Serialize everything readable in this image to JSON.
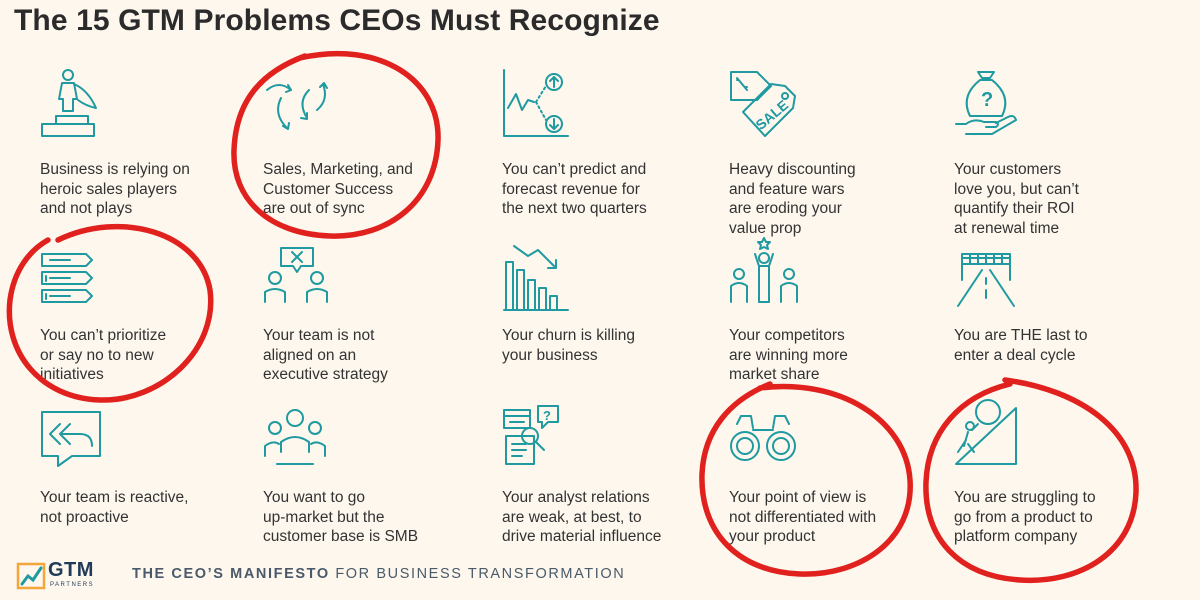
{
  "title": "The 15 GTM Problems CEOs Must Recognize",
  "accent_color": "#1e9aa0",
  "highlight_color": "#e0211d",
  "problems": [
    {
      "icon": "hero-podium-icon",
      "lines": [
        "Business is relying on",
        "heroic sales players",
        "and not plays"
      ],
      "circled": false
    },
    {
      "icon": "sync-arrows-icon",
      "lines": [
        "Sales, Marketing, and",
        "Customer Success",
        "are out of sync"
      ],
      "circled": true
    },
    {
      "icon": "forecast-chart-icon",
      "lines": [
        "You can’t predict and",
        "forecast revenue for",
        "the next two quarters"
      ],
      "circled": false
    },
    {
      "icon": "sale-tag-icon",
      "lines": [
        "Heavy discounting",
        "and feature wars",
        "are eroding your",
        "value prop"
      ],
      "circled": false
    },
    {
      "icon": "money-bag-hand-icon",
      "lines": [
        "Your customers",
        "love you, but can’t",
        "quantify their ROI",
        "at renewal time"
      ],
      "circled": false
    },
    {
      "icon": "priority-list-icon",
      "lines": [
        "You can’t prioritize",
        "or say no to new",
        "initiatives"
      ],
      "circled": true
    },
    {
      "icon": "misaligned-team-icon",
      "lines": [
        "Your team is not",
        "aligned on an",
        "executive strategy"
      ],
      "circled": false
    },
    {
      "icon": "declining-bars-icon",
      "lines": [
        "Your churn is killing",
        "your business"
      ],
      "circled": false
    },
    {
      "icon": "winner-podium-icon",
      "lines": [
        "Your competitors",
        "are winning more",
        "market share"
      ],
      "circled": false
    },
    {
      "icon": "race-finish-icon",
      "lines": [
        "You are THE last to",
        "enter a deal cycle"
      ],
      "circled": false
    },
    {
      "icon": "reply-chat-icon",
      "lines": [
        "Your team is reactive,",
        "not proactive"
      ],
      "circled": false
    },
    {
      "icon": "customer-group-icon",
      "lines": [
        "You want to go",
        "up-market but the",
        "customer base is SMB"
      ],
      "circled": false
    },
    {
      "icon": "analyst-research-icon",
      "lines": [
        "Your analyst relations",
        "are weak, at best, to",
        "drive material influence"
      ],
      "circled": false
    },
    {
      "icon": "binoculars-icon",
      "lines": [
        "Your point of view is",
        "not differentiated with",
        "your product"
      ],
      "circled": true
    },
    {
      "icon": "boulder-uphill-icon",
      "lines": [
        "You are struggling to",
        "go from a product to",
        "platform company"
      ],
      "circled": true
    }
  ],
  "icon_labels": {
    "sale": "SALE",
    "question": "?"
  },
  "footer": {
    "logo_text": "GTM",
    "logo_sub": "PARTNERS",
    "tagline_bold": "THE CEO’S MANIFESTO",
    "tagline_rest": " FOR BUSINESS TRANSFORMATION"
  }
}
